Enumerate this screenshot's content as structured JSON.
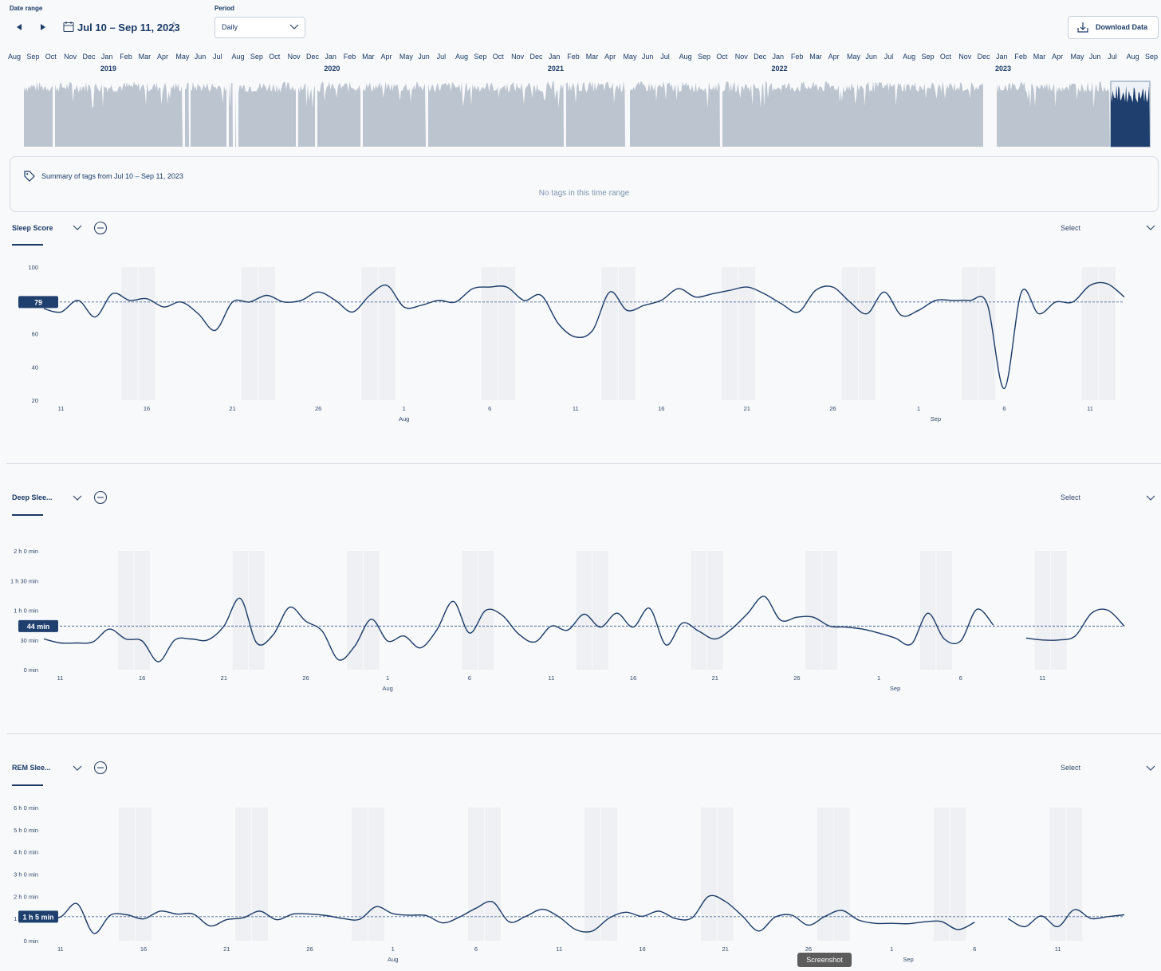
{
  "header": {
    "date_range_label": "Date range",
    "date_range_value": "Jul 10 – Sep 11, 2023",
    "period_label": "Period",
    "period_value": "Daily",
    "download_label": "Download Data"
  },
  "timeline": {
    "months": [
      "Aug",
      "Sep",
      "Oct",
      "Nov",
      "Dec",
      "Jan",
      "Feb",
      "Mar",
      "Apr",
      "May",
      "Jun",
      "Jul",
      "Aug",
      "Sep",
      "Oct",
      "Nov",
      "Dec",
      "Jan",
      "Feb",
      "Mar",
      "Apr",
      "May",
      "Jun",
      "Jul",
      "Aug",
      "Sep",
      "Oct",
      "Nov",
      "Dec",
      "Jan",
      "Feb",
      "Mar",
      "Apr",
      "May",
      "Jun",
      "Jul",
      "Aug",
      "Sep",
      "Oct",
      "Nov",
      "Dec",
      "Jan",
      "Feb",
      "Mar",
      "Apr",
      "May",
      "Jun",
      "Jul",
      "Aug",
      "Sep",
      "Oct",
      "Nov",
      "Dec",
      "Jan",
      "Feb",
      "Mar",
      "Apr",
      "May",
      "Jun",
      "Jul",
      "Aug",
      "Sep"
    ],
    "years": [
      "2019",
      "2020",
      "2021",
      "2022",
      "2023"
    ]
  },
  "tags": {
    "title": "Summary of tags from Jul 10 – Sep 11, 2023",
    "empty_text": "No tags in this time range"
  },
  "select_label": "Select",
  "x_axis": {
    "day_ticks": [
      "11",
      "16",
      "21",
      "26",
      "1",
      "6",
      "11",
      "16",
      "21",
      "26",
      "1",
      "6",
      "11"
    ],
    "month_labels": [
      "Aug",
      "Sep"
    ]
  },
  "colors": {
    "line": "#1b3a66",
    "accent": "#1f3f6e",
    "timeline_bar": "#bcc4cf",
    "weekend_band": "#eef0f3"
  },
  "sections": [
    {
      "title": "Sleep Score",
      "y_ticks": [
        "100",
        "80",
        "60",
        "40",
        "20"
      ],
      "avg_badge": "79",
      "chart_data": {
        "type": "line",
        "ylabel": "",
        "ylim": [
          20,
          100
        ],
        "average": 79,
        "values": [
          75,
          73,
          80,
          70,
          84,
          80,
          81,
          76,
          79,
          72,
          62,
          79,
          79,
          83,
          79,
          80,
          85,
          80,
          73,
          83,
          89,
          76,
          77,
          80,
          79,
          87,
          88,
          88,
          80,
          83,
          66,
          58,
          62,
          85,
          74,
          77,
          80,
          87,
          82,
          84,
          86,
          88,
          84,
          78,
          73,
          86,
          88,
          79,
          72,
          85,
          71,
          74,
          80,
          80,
          80,
          78,
          27,
          85,
          72,
          79,
          79,
          89,
          90,
          82
        ]
      },
      "select_label": "Select"
    },
    {
      "title": "Deep Slee...",
      "y_ticks": [
        "2 h 0 min",
        "1 h 30 min",
        "1 h 0 min",
        "30 min",
        "0 min"
      ],
      "avg_badge": "44 min",
      "chart_data": {
        "type": "line",
        "ylabel": "",
        "ylim": [
          0,
          120
        ],
        "average": 44,
        "values": [
          31,
          27,
          27,
          28,
          41,
          31,
          29,
          8,
          30,
          31,
          30,
          44,
          72,
          27,
          35,
          63,
          49,
          39,
          10,
          24,
          51,
          29,
          34,
          22,
          40,
          69,
          37,
          60,
          55,
          36,
          28,
          44,
          40,
          56,
          43,
          57,
          43,
          62,
          25,
          47,
          39,
          31,
          41,
          57,
          74,
          50,
          53,
          53,
          44,
          43,
          41,
          37,
          32,
          26,
          57,
          31,
          29,
          61,
          45,
          null,
          32,
          30,
          30,
          34,
          57,
          60,
          44
        ]
      },
      "select_label": "Select"
    },
    {
      "title": "REM Slee...",
      "y_ticks": [
        "6 h 0 min",
        "5 h 0 min",
        "4 h 0 min",
        "3 h 0 min",
        "2 h 0 min",
        "1 h 0 min",
        "0 min"
      ],
      "avg_badge": "1 h 5 min",
      "chart_data": {
        "type": "line",
        "ylabel": "",
        "ylim": [
          0,
          360
        ],
        "average": 65,
        "values": [
          66,
          64,
          100,
          20,
          69,
          70,
          59,
          80,
          72,
          72,
          40,
          57,
          62,
          80,
          57,
          72,
          72,
          68,
          60,
          58,
          92,
          73,
          69,
          68,
          48,
          64,
          88,
          105,
          51,
          66,
          85,
          64,
          30,
          26,
          61,
          77,
          66,
          80,
          60,
          62,
          120,
          106,
          68,
          26,
          64,
          69,
          42,
          66,
          82,
          56,
          47,
          47,
          46,
          51,
          52,
          30,
          50,
          null,
          60,
          38,
          67,
          38,
          84,
          60,
          65,
          70
        ]
      },
      "select_label": "Select"
    }
  ],
  "toast": "Screenshot"
}
